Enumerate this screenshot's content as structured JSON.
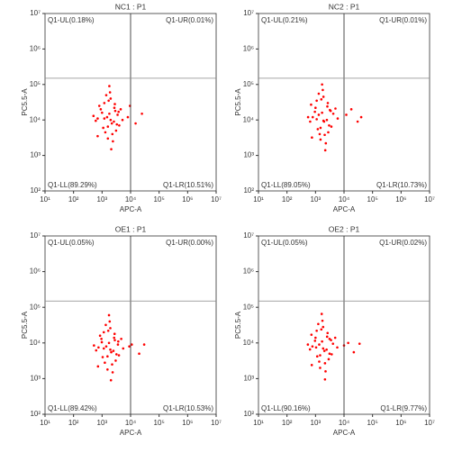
{
  "chart_data": [
    {
      "type": "scatter",
      "title": "NC1 : P1",
      "x_label": "APC-A",
      "y_label": "PC5.5-A",
      "xscale": "log",
      "yscale": "log",
      "color": "#ff0000",
      "xlim": [
        10,
        10000000
      ],
      "ylim": [
        100,
        10000000
      ],
      "xticks": [
        {
          "value": 10,
          "label": "10¹"
        },
        {
          "value": 100,
          "label": "10²"
        },
        {
          "value": 1000,
          "label": "10³"
        },
        {
          "value": 10000,
          "label": "10⁴"
        },
        {
          "value": 100000,
          "label": "10⁵"
        },
        {
          "value": 1000000,
          "label": "10⁶"
        },
        {
          "value": 10000000,
          "label": "10⁷"
        }
      ],
      "yticks": [
        {
          "value": 100,
          "label": "10²"
        },
        {
          "value": 1000,
          "label": "10³"
        },
        {
          "value": 10000,
          "label": "10⁴"
        },
        {
          "value": 100000,
          "label": "10⁵"
        },
        {
          "value": 1000000,
          "label": "10⁶"
        },
        {
          "value": 10000000,
          "label": "10⁷"
        }
      ],
      "gates": {
        "x": 10000,
        "y": 150000
      },
      "quadrants": {
        "UL": "Q1-UL(0.18%)",
        "UR": "Q1-UR(0.01%)",
        "LL": "Q1-LL(89.29%)",
        "LR": "Q1-LR(10.51%)"
      },
      "x": [
        1500,
        2200,
        900,
        3100,
        1800,
        2600,
        1200,
        700,
        4000,
        2000,
        1600,
        2900,
        1100,
        5200,
        800,
        2400,
        1900,
        3500,
        1300,
        600,
        2700,
        1700,
        8000,
        15000,
        1000,
        3300,
        2100,
        1400,
        500,
        4500,
        1800,
        2300,
        9500,
        25000,
        1200,
        2800,
        1600,
        3800,
        700,
        2000
      ],
      "y": [
        12000,
        8000,
        20000,
        5000,
        15000,
        9000,
        30000,
        11000,
        7000,
        40000,
        3000,
        18000,
        6000,
        10000,
        25000,
        2500,
        60000,
        14000,
        4500,
        9500,
        22000,
        35000,
        12000,
        8000,
        16000,
        7500,
        1500,
        50000,
        13000,
        20000,
        90000,
        4000,
        25000,
        15000,
        11000,
        28000,
        6500,
        17000,
        3500,
        10000
      ]
    },
    {
      "type": "scatter",
      "title": "NC2 : P1",
      "x_label": "APC-A",
      "y_label": "PC5.5-A",
      "xscale": "log",
      "yscale": "log",
      "color": "#ff0000",
      "xlim": [
        10,
        10000000
      ],
      "ylim": [
        100,
        10000000
      ],
      "xticks": [
        {
          "value": 10,
          "label": "10¹"
        },
        {
          "value": 100,
          "label": "10²"
        },
        {
          "value": 1000,
          "label": "10³"
        },
        {
          "value": 10000,
          "label": "10⁴"
        },
        {
          "value": 100000,
          "label": "10⁵"
        },
        {
          "value": 1000000,
          "label": "10⁶"
        },
        {
          "value": 10000000,
          "label": "10⁷"
        }
      ],
      "yticks": [
        {
          "value": 100,
          "label": "10²"
        },
        {
          "value": 1000,
          "label": "10³"
        },
        {
          "value": 10000,
          "label": "10⁴"
        },
        {
          "value": 100000,
          "label": "10⁵"
        },
        {
          "value": 1000000,
          "label": "10⁶"
        },
        {
          "value": 10000000,
          "label": "10⁷"
        }
      ],
      "gates": {
        "x": 10000,
        "y": 150000
      },
      "quadrants": {
        "UL": "Q1-UL(0.21%)",
        "UR": "Q1-UR(0.01%)",
        "LL": "Q1-LL(89.05%)",
        "LR": "Q1-LR(10.73%)"
      },
      "x": [
        1300,
        2000,
        1000,
        2800,
        1700,
        2500,
        1100,
        800,
        3600,
        1900,
        1500,
        3200,
        1200,
        6000,
        700,
        2300,
        1800,
        4200,
        1400,
        650,
        2600,
        1600,
        12000,
        30000,
        950,
        3000,
        2200,
        1300,
        550,
        5000,
        1700,
        2100,
        18000,
        40000,
        1100,
        2700,
        1500,
        3400,
        750,
        1900
      ],
      "y": [
        14000,
        9000,
        22000,
        4500,
        16000,
        10000,
        35000,
        12000,
        6500,
        45000,
        2800,
        19000,
        5500,
        11000,
        27000,
        2200,
        70000,
        15000,
        4000,
        9000,
        24000,
        38000,
        14000,
        9000,
        17000,
        7000,
        1400,
        55000,
        12000,
        21000,
        100000,
        3800,
        20000,
        12000,
        10500,
        30000,
        6000,
        18000,
        3200,
        9500
      ]
    },
    {
      "type": "scatter",
      "title": "OE1 : P1",
      "x_label": "APC-A",
      "y_label": "PC5.5-A",
      "xscale": "log",
      "yscale": "log",
      "color": "#ff0000",
      "xlim": [
        10,
        10000000
      ],
      "ylim": [
        100,
        10000000
      ],
      "xticks": [
        {
          "value": 10,
          "label": "10¹"
        },
        {
          "value": 100,
          "label": "10²"
        },
        {
          "value": 1000,
          "label": "10³"
        },
        {
          "value": 10000,
          "label": "10⁴"
        },
        {
          "value": 100000,
          "label": "10⁵"
        },
        {
          "value": 1000000,
          "label": "10⁶"
        },
        {
          "value": 10000000,
          "label": "10⁷"
        }
      ],
      "yticks": [
        {
          "value": 100,
          "label": "10²"
        },
        {
          "value": 1000,
          "label": "10³"
        },
        {
          "value": 10000,
          "label": "10⁴"
        },
        {
          "value": 100000,
          "label": "10⁵"
        },
        {
          "value": 1000000,
          "label": "10⁶"
        },
        {
          "value": 10000000,
          "label": "10⁷"
        }
      ],
      "gates": {
        "x": 10000,
        "y": 150000
      },
      "quadrants": {
        "UL": "Q1-UL(0.05%)",
        "UR": "Q1-UR(0.00%)",
        "LL": "Q1-LL(89.42%)",
        "LR": "Q1-LR(10.53%)"
      },
      "x": [
        1400,
        2100,
        950,
        3000,
        1750,
        2500,
        1150,
        750,
        3900,
        1950,
        1550,
        2800,
        1050,
        5500,
        850,
        2350,
        1850,
        3600,
        1250,
        620,
        2650,
        1650,
        9000,
        20000,
        980,
        3200,
        2050,
        1350,
        520,
        4700,
        1750,
        2250,
        11000,
        30000,
        1150,
        2750,
        1550,
        3700,
        720,
        1950
      ],
      "y": [
        8000,
        5500,
        13000,
        3200,
        10000,
        6000,
        20000,
        7500,
        4500,
        26000,
        1800,
        12000,
        4000,
        7000,
        16000,
        1500,
        40000,
        9000,
        2800,
        6200,
        14000,
        22000,
        8000,
        5000,
        10500,
        4800,
        900,
        32000,
        8500,
        13000,
        60000,
        2500,
        9000,
        9000,
        7000,
        18000,
        4200,
        11000,
        2200,
        6500
      ]
    },
    {
      "type": "scatter",
      "title": "OE2 : P1",
      "x_label": "APC-A",
      "y_label": "PC5.5-A",
      "xscale": "log",
      "yscale": "log",
      "color": "#ff0000",
      "xlim": [
        10,
        10000000
      ],
      "ylim": [
        100,
        10000000
      ],
      "xticks": [
        {
          "value": 10,
          "label": "10¹"
        },
        {
          "value": 100,
          "label": "10²"
        },
        {
          "value": 1000,
          "label": "10³"
        },
        {
          "value": 10000,
          "label": "10⁴"
        },
        {
          "value": 100000,
          "label": "10⁵"
        },
        {
          "value": 1000000,
          "label": "10⁶"
        },
        {
          "value": 10000000,
          "label": "10⁷"
        }
      ],
      "yticks": [
        {
          "value": 100,
          "label": "10²"
        },
        {
          "value": 1000,
          "label": "10³"
        },
        {
          "value": 10000,
          "label": "10⁴"
        },
        {
          "value": 100000,
          "label": "10⁵"
        },
        {
          "value": 1000000,
          "label": "10⁶"
        },
        {
          "value": 10000000,
          "label": "10⁷"
        }
      ],
      "gates": {
        "x": 10000,
        "y": 150000
      },
      "quadrants": {
        "UL": "Q1-UL(0.05%)",
        "UR": "Q1-UR(0.02%)",
        "LL": "Q1-LL(90.16%)",
        "LR": "Q1-LR(9.77%)"
      },
      "x": [
        1350,
        2050,
        1000,
        2900,
        1700,
        2450,
        1100,
        780,
        3700,
        1850,
        1450,
        3100,
        1150,
        5800,
        720,
        2250,
        1750,
        4100,
        1350,
        640,
        2550,
        1600,
        10000,
        22000,
        960,
        3100,
        2150,
        1250,
        540,
        4900,
        1650,
        2150,
        14000,
        35000,
        1050,
        2650,
        1450,
        3500,
        740,
        1850
      ],
      "y": [
        9000,
        6000,
        14000,
        3500,
        11000,
        6500,
        22000,
        8000,
        4800,
        28000,
        2000,
        13000,
        4200,
        7500,
        17000,
        1600,
        42000,
        9500,
        3000,
        6600,
        15000,
        24000,
        8500,
        5500,
        11500,
        5000,
        950,
        34000,
        9000,
        14000,
        65000,
        2700,
        10000,
        9500,
        7500,
        19000,
        4500,
        12000,
        2400,
        7000
      ]
    }
  ]
}
